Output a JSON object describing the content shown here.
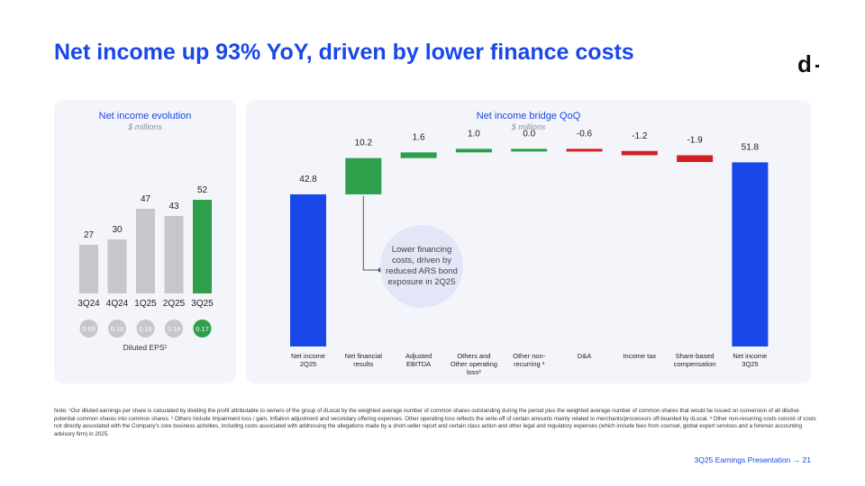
{
  "title": "Net income up 93% YoY, driven by lower finance costs",
  "logo": "d",
  "colors": {
    "accent": "#1a47e8",
    "green": "#2ea04c",
    "red": "#d31f1f",
    "gray": "#c6c6cb",
    "panel": "#f3f5fb"
  },
  "left_panel": {
    "title": "Net income evolution",
    "subtitle": "$ millions",
    "eps_label": "Diluted EPS¹"
  },
  "right_panel": {
    "title": "Net income bridge QoQ",
    "subtitle": "$ millions"
  },
  "callout": "Lower financing costs, driven by reduced ARS bond exposure in 2Q25",
  "chart_data": [
    {
      "type": "bar",
      "title": "Net income evolution",
      "subtitle": "$ millions",
      "categories": [
        "3Q24",
        "4Q24",
        "1Q25",
        "2Q25",
        "3Q25"
      ],
      "values": [
        27,
        30,
        47,
        43,
        52
      ],
      "value_labels": [
        "27",
        "30",
        "47",
        "43",
        "52"
      ],
      "highlight": "3Q25",
      "eps": [
        "0.09",
        "0.10",
        "0.15",
        "0.14",
        "0.17"
      ],
      "eps_label": "Diluted EPS¹",
      "ylim": [
        0,
        60
      ]
    },
    {
      "type": "bar",
      "subtype": "waterfall",
      "title": "Net income bridge QoQ",
      "subtitle": "$ millions",
      "steps": [
        {
          "label": [
            "Net income",
            "2Q25"
          ],
          "value": 42.8,
          "value_label": "42.8",
          "kind": "total"
        },
        {
          "label": [
            "Net financial",
            "results"
          ],
          "value": 10.2,
          "value_label": "10.2",
          "kind": "delta"
        },
        {
          "label": [
            "Adjusted",
            "EBITDA"
          ],
          "value": 1.6,
          "value_label": "1.6",
          "kind": "delta"
        },
        {
          "label": [
            "Others and",
            "Other operating",
            "loss²"
          ],
          "value": 1.0,
          "value_label": "1.0",
          "kind": "delta"
        },
        {
          "label": [
            "Other non-",
            "recurring ³"
          ],
          "value": 0.0,
          "value_label": "0.0",
          "kind": "delta"
        },
        {
          "label": [
            "D&A"
          ],
          "value": -0.6,
          "value_label": "-0.6",
          "kind": "delta"
        },
        {
          "label": [
            "Income tax"
          ],
          "value": -1.2,
          "value_label": "-1.2",
          "kind": "delta"
        },
        {
          "label": [
            "Share-based",
            "compensation"
          ],
          "value": -1.9,
          "value_label": "-1.9",
          "kind": "delta"
        },
        {
          "label": [
            "Net income",
            "3Q25"
          ],
          "value": 51.8,
          "value_label": "51.8",
          "kind": "total"
        }
      ]
    }
  ],
  "note": "Note: ¹Our diluted earnings per share is calculated by dividing the profit attributable to owners of the group of dLocal by the weighted average number of common shares outstanding during the period plus the weighted average number of common shares that would be issued on conversion of all dilutive potential common shares into common shares. ² Others include Impairment loss / gain, Inflation adjustment and secondary offering expenses. Other operating loss reflects the write-off of certain amounts mainly related to merchants/processors off-boarded by dLocal. ³ Other non-recurring costs consist of costs not directly associated with the Company's core business activities, including costs associated with addressing the allegations made by a short-seller report and certain class action and other legal and regulatory expenses (which include fees from counsel, global expert services and a forensic accounting advisory firm) in 2025.",
  "footer": "3Q25 Earnings Presentation → 21"
}
